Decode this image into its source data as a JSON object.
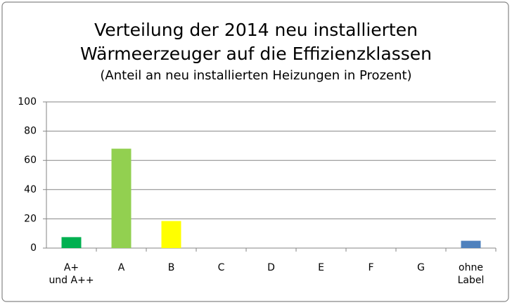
{
  "chart_data": {
    "type": "bar",
    "title": [
      "Verteilung der 2014 neu installierten",
      "Wärmeerzeuger auf die Effizienzklassen"
    ],
    "subtitle": "(Anteil an neu installierten Heizungen in Prozent)",
    "categories": [
      "A+\nund A++",
      "A",
      "B",
      "C",
      "D",
      "E",
      "F",
      "G",
      "ohne\nLabel"
    ],
    "values": [
      7.5,
      68,
      18.5,
      0,
      0,
      0,
      0,
      0,
      5
    ],
    "colors": [
      "#00b050",
      "#92d050",
      "#ffff00",
      null,
      null,
      null,
      null,
      null,
      "#4f81bd"
    ],
    "ylim": [
      0,
      100
    ],
    "yticks": [
      0,
      20,
      40,
      60,
      80,
      100
    ],
    "grid": true
  }
}
